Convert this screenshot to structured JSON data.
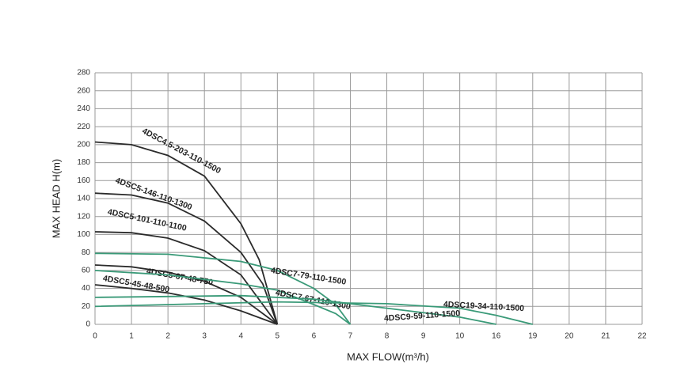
{
  "chart_data": {
    "type": "line",
    "x_label": "MAX FLOW(m³/h)",
    "y_label": "MAX HEAD H(m)",
    "xlim": [
      0,
      22
    ],
    "ylim": [
      0,
      280
    ],
    "xticks": [
      0,
      1,
      2,
      3,
      4,
      5,
      6,
      7,
      8,
      9,
      10,
      16,
      19,
      20,
      21,
      22
    ],
    "yticks": [
      0,
      20,
      40,
      60,
      80,
      100,
      120,
      140,
      160,
      180,
      200,
      220,
      240,
      260,
      280
    ],
    "grid": true,
    "series": [
      {
        "name": "4DSC4.5-203-110-1500",
        "color": "#2b2b2b",
        "x": [
          0,
          1,
          2,
          3,
          4,
          4.5,
          5
        ],
        "values": [
          203,
          200,
          188,
          165,
          112,
          72,
          0
        ]
      },
      {
        "name": "4DSC5-146-110-1300",
        "color": "#2b2b2b",
        "x": [
          0,
          1,
          2,
          3,
          4,
          4.6,
          5
        ],
        "values": [
          146,
          144,
          135,
          115,
          80,
          45,
          0
        ]
      },
      {
        "name": "4DSC5-101-110-1100",
        "color": "#2b2b2b",
        "x": [
          0,
          1,
          2,
          3,
          4,
          5
        ],
        "values": [
          103,
          102,
          96,
          82,
          55,
          0
        ]
      },
      {
        "name": "4DSC5-67-48-750",
        "color": "#2b2b2b",
        "x": [
          0,
          1,
          2,
          3,
          4,
          5
        ],
        "values": [
          66,
          64,
          58,
          48,
          30,
          0
        ]
      },
      {
        "name": "4DSC5-45-48-500",
        "color": "#2b2b2b",
        "x": [
          0,
          1,
          2,
          3,
          4,
          5
        ],
        "values": [
          44,
          40,
          35,
          27,
          15,
          0
        ]
      },
      {
        "name": "4DSC7-79-110-1500",
        "color": "#3a9a78",
        "x": [
          0,
          2,
          4,
          5,
          6,
          6.6,
          7
        ],
        "values": [
          79,
          78,
          70,
          60,
          40,
          22,
          0
        ]
      },
      {
        "name": "4DSC7-67-110-1300",
        "color": "#3a9a78",
        "x": [
          0,
          2,
          4,
          5,
          6,
          6.6,
          7
        ],
        "values": [
          60,
          55,
          45,
          38,
          22,
          12,
          0
        ]
      },
      {
        "name": "4DSC9-59-110-1500",
        "color": "#3a9a78",
        "x": [
          0,
          2,
          4,
          6,
          8,
          10,
          16
        ],
        "values": [
          30,
          31,
          32,
          28,
          18,
          8,
          0
        ]
      },
      {
        "name": "4DSC19-34-110-1500",
        "color": "#3a9a78",
        "x": [
          0,
          3,
          5,
          8,
          10,
          16,
          19
        ],
        "values": [
          20,
          23,
          25,
          23,
          18,
          10,
          0
        ]
      }
    ]
  }
}
